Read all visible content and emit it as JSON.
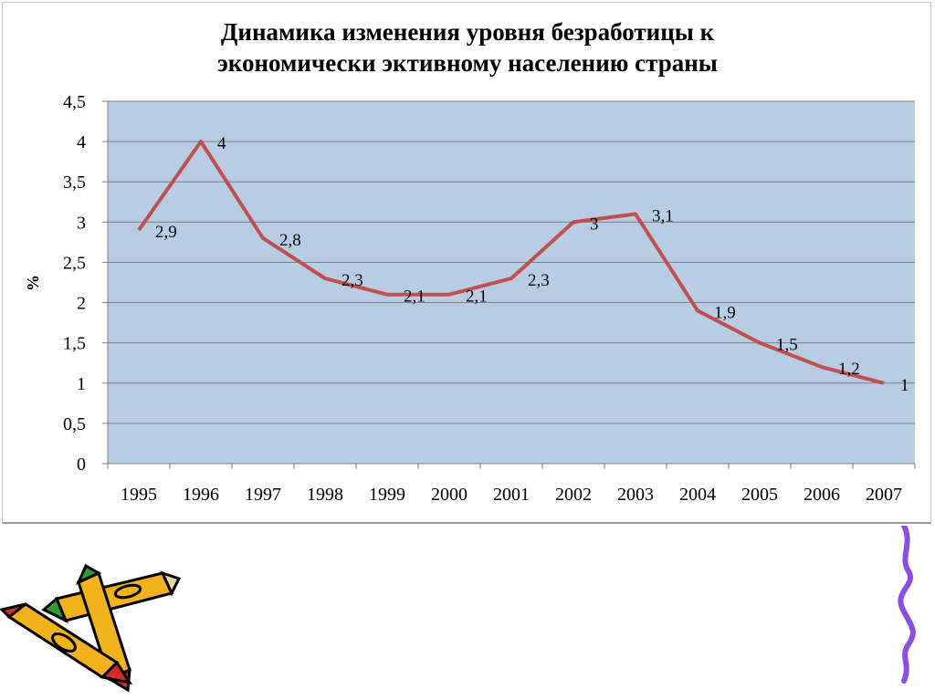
{
  "chart_data": {
    "type": "line",
    "title_lines": [
      "Динамика изменения уровня безработицы к",
      "экономически эктивному населению страны"
    ],
    "xlabel": "",
    "ylabel": "%",
    "categories": [
      "1995",
      "1996",
      "1997",
      "1998",
      "1999",
      "2000",
      "2001",
      "2002",
      "2003",
      "2004",
      "2005",
      "2006",
      "2007"
    ],
    "series": [
      {
        "values": [
          2.9,
          4,
          2.8,
          2.3,
          2.1,
          2.1,
          2.3,
          3,
          3.1,
          1.9,
          1.5,
          1.2,
          1
        ]
      }
    ],
    "data_labels": [
      "2,9",
      "4",
      "2,8",
      "2,3",
      "2,1",
      "2,1",
      "2,3",
      "3",
      "3,1",
      "1,9",
      "1,5",
      "1,2",
      "1"
    ],
    "y_ticks": [
      "0",
      "0,5",
      "1",
      "1,5",
      "2",
      "2,5",
      "3",
      "3,5",
      "4",
      "4,5"
    ],
    "ylim": [
      0,
      4.5
    ],
    "ystep": 0.5,
    "grid": true,
    "plot_background": "#b8cce4",
    "line_color": "#c0504d",
    "grid_color": "#7f7f7f"
  },
  "decor": {
    "icons": [
      "pencils-clipart-icon",
      "squiggle-line-icon"
    ],
    "colors": {
      "pencil": "#f2b21b",
      "tip": "#d42a2a",
      "green": "#2f9a2f",
      "squiggle": "#8a4fe0"
    }
  }
}
